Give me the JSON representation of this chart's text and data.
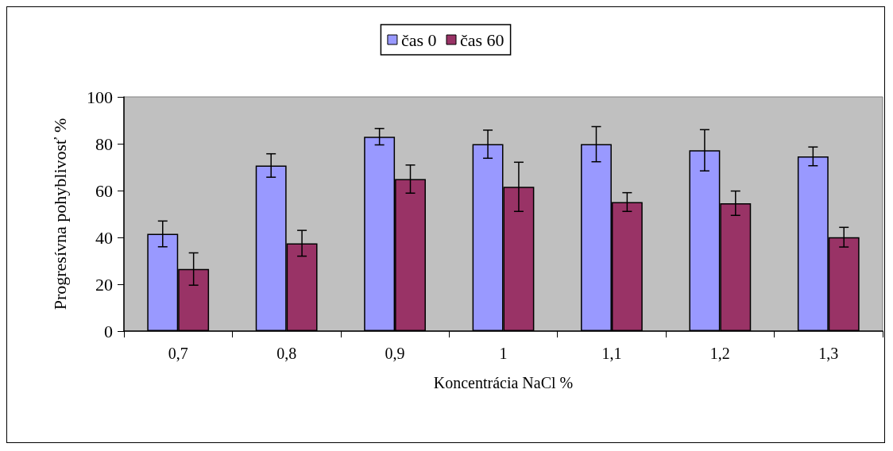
{
  "chart_data": {
    "type": "bar",
    "xlabel": "Koncentrácia NaCl %",
    "ylabel": "Progresívna pohyblivosť %",
    "categories": [
      "0,7",
      "0,8",
      "0,9",
      "1",
      "1,1",
      "1,2",
      "1,3"
    ],
    "series": [
      {
        "name": "čas 0",
        "color": "#9999ff",
        "values": [
          41.5,
          70.7,
          83,
          79.8,
          79.8,
          77.2,
          74.6
        ],
        "errors": [
          5.5,
          5,
          3.5,
          6,
          7.5,
          8.8,
          4
        ]
      },
      {
        "name": "čas 60",
        "color": "#993366",
        "values": [
          26.5,
          37.5,
          64.9,
          61.6,
          55.1,
          54.6,
          40.1
        ],
        "errors": [
          6.9,
          5.5,
          6,
          10.5,
          4,
          5.2,
          4.2
        ]
      }
    ],
    "ylim": [
      0,
      100
    ],
    "yticks": [
      0,
      20,
      40,
      60,
      80,
      100
    ],
    "grid": false,
    "legend": "top"
  }
}
